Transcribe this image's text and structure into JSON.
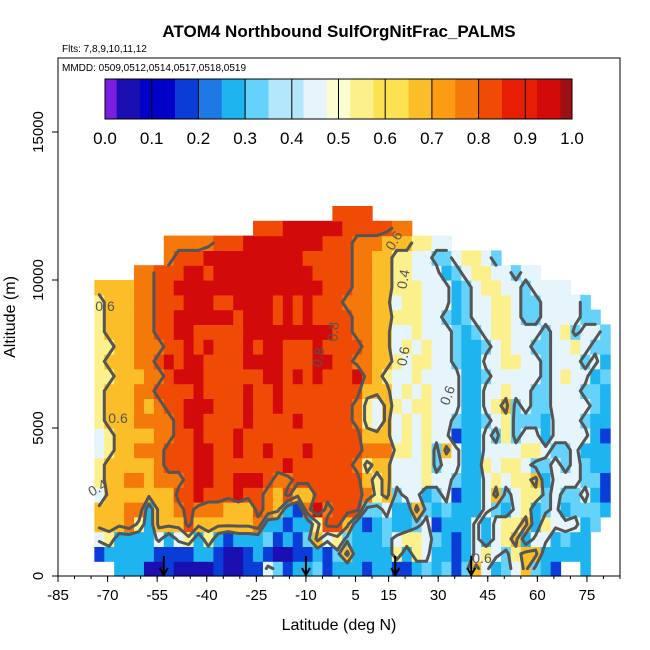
{
  "chart_data": {
    "type": "heatmap",
    "title": "ATOM4 Northbound SulfOrgNitFrac_PALMS",
    "flights_note": "Flts: 7,8,9,10,11,12",
    "dates_note": "MMDD: 0509,0512,0514,0517,0518,0519",
    "xlabel": "Latitude (deg N)",
    "ylabel": "Altitude (m)",
    "xlim": [
      -85,
      85
    ],
    "ylim": [
      0,
      17500
    ],
    "x_ticks": [
      -85,
      -70,
      -55,
      -40,
      -25,
      -10,
      5,
      15,
      30,
      45,
      60,
      75
    ],
    "x_ticks_labels": [
      "-85",
      "-70",
      "-55",
      "-40",
      "-25",
      "-10",
      "5",
      "15",
      "30",
      "45",
      "60",
      "75"
    ],
    "y_ticks": [
      0,
      5000,
      10000,
      15000
    ],
    "y_ticks_labels": [
      "0",
      "5000",
      "10000",
      "15000"
    ],
    "colorbar": {
      "range": [
        0,
        1
      ],
      "ticks": [
        "0.0",
        "0.1",
        "0.2",
        "0.3",
        "0.4",
        "0.5",
        "0.6",
        "0.7",
        "0.8",
        "0.9",
        "1.0"
      ],
      "colors": [
        "#7a1fe0",
        "#1a0fb0",
        "#0000c8",
        "#0a3cd8",
        "#1e78e6",
        "#1eb4f0",
        "#64d2fa",
        "#b4e6fc",
        "#e6f4fc",
        "#fcfcd2",
        "#fcf08c",
        "#fce150",
        "#fcbe28",
        "#fc9b14",
        "#f5780a",
        "#f04b05",
        "#e61e05",
        "#d20a0a",
        "#a00f14"
      ]
    },
    "contour_labels": [
      "0.6",
      "0.6",
      "0.4",
      "0.8",
      "0.8",
      "0.6",
      "0.6",
      "0.4",
      "0.6",
      "0.6"
    ],
    "flight_arrow_latitudes": [
      -53,
      -10,
      17,
      40
    ],
    "field": {
      "lat_min": -80,
      "lat_max": 82,
      "lat_step": 3,
      "alt_step": 500,
      "altitudes": [
        500,
        1000,
        1500,
        2000,
        2500,
        3000,
        3500,
        4000,
        4500,
        5000,
        5500,
        6000,
        6500,
        7000,
        7500,
        8000,
        8500,
        9000,
        9500,
        10000,
        10500,
        11000,
        11500,
        12000,
        12500
      ],
      "rows": [
        "....222001000010011431223122212211232313642346321..2",
        "..12222211112210012100112136222252542212454356622222",
        "..45222242452521222312136453222345543212424562442322",
        "..666752666866666672212258862123223412224245562544423",
        "..6667726678777666876217978883342263232224324523423332",
        "..4666666688988898876866888887563442341224634553433421",
        "..5667767778998899987788888886564445443224545562444331",
        "..5666667888998888888988888875664445344225455433434322",
        "..4566777888998898898889888887775545364224444554334222",
        "..4566667788988898888888888886664545441224353442444421",
        "..5666777789988889888898888875464545443223453332444322",
        "..5666767889998889889888888875465455444224563433444432",
        "..5666778888988889889888888886664545444224454433444332",
        "..5566677899988888899898988897654454444223444443454423",
        "..5666778989988889999888998877665455443224455443444342",
        "..5566777889898889899888988887664545443223454433445433",
        "..5666778899888889999999998877664454443234554443453443",
        "..566677889999998999898988887766555443234455433444433",
        "..56667788899988999989898887776645544423445543344443",
        "..666677889999999999999998887766555444234554434444",
        "......77888998999999999988887766554442345544344",
        ".........7888999999999988888776655443345543",
        ".........77777888999999998887776665544",
        "..................8889999998888877",
        "..........................8888"
      ]
    }
  }
}
